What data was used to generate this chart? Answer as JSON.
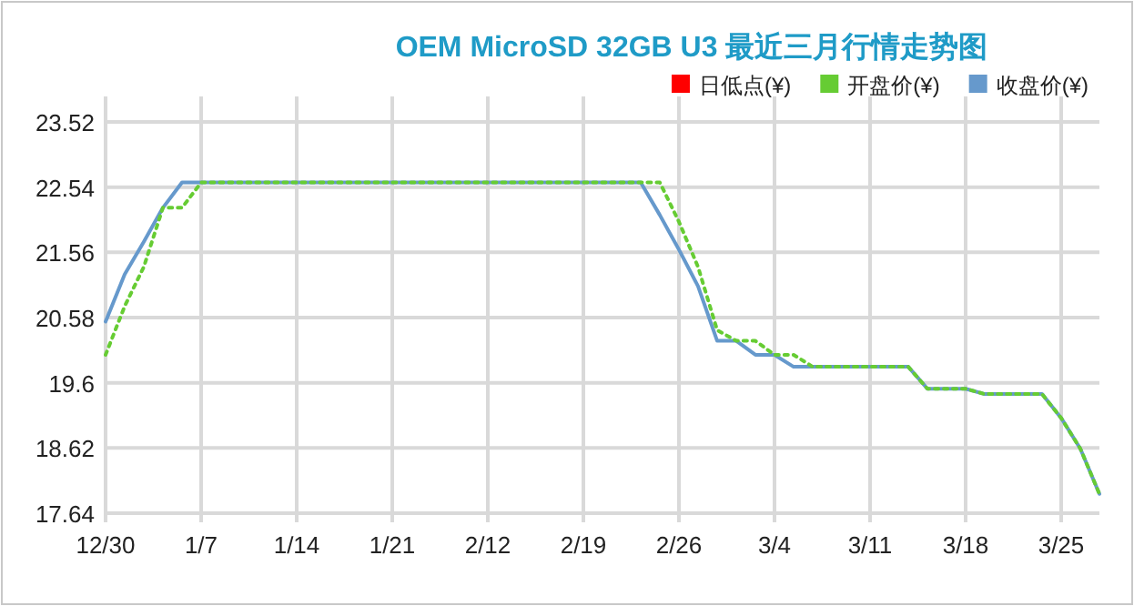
{
  "chart_data": {
    "type": "line",
    "title": "OEM MicroSD 32GB U3 最近三月行情走势图",
    "categories": [
      "12/30",
      null,
      null,
      null,
      null,
      "1/7",
      null,
      null,
      null,
      null,
      "1/14",
      null,
      null,
      null,
      null,
      "1/21",
      null,
      null,
      null,
      null,
      "2/12",
      null,
      null,
      null,
      null,
      "2/19",
      null,
      null,
      null,
      null,
      "2/26",
      null,
      null,
      null,
      null,
      "3/4",
      null,
      null,
      null,
      null,
      "3/11",
      null,
      null,
      null,
      null,
      "3/18",
      null,
      null,
      null,
      null,
      "3/25",
      null,
      null
    ],
    "series": [
      {
        "name": "日低点(¥)",
        "color": "#ff0000",
        "values": [
          null,
          null,
          null,
          null,
          null,
          null,
          null,
          null,
          null,
          null,
          null,
          null,
          null,
          null,
          null,
          null,
          null,
          null,
          null,
          null,
          null,
          null,
          null,
          null,
          null,
          null,
          null,
          null,
          null,
          null,
          null,
          null,
          null,
          null,
          null,
          null,
          null,
          null,
          null,
          null,
          null,
          null,
          null,
          null,
          null,
          null,
          null,
          null,
          null,
          null,
          null,
          null,
          null
        ]
      },
      {
        "name": "开盘价(¥)",
        "color": "#66cc33",
        "line_style": "dotted",
        "values": [
          20.02,
          20.75,
          21.34,
          22.23,
          22.23,
          22.61,
          22.61,
          22.61,
          22.61,
          22.61,
          22.61,
          22.61,
          22.61,
          22.61,
          22.61,
          22.61,
          22.61,
          22.61,
          22.61,
          22.61,
          22.61,
          22.61,
          22.61,
          22.61,
          22.61,
          22.61,
          22.61,
          22.61,
          22.61,
          22.61,
          22.02,
          21.34,
          20.39,
          20.23,
          20.23,
          20.02,
          20.02,
          19.84,
          19.84,
          19.84,
          19.84,
          19.84,
          19.84,
          19.51,
          19.51,
          19.51,
          19.43,
          19.43,
          19.43,
          19.43,
          19.07,
          18.61,
          17.93
        ]
      },
      {
        "name": "收盘价(¥)",
        "color": "#6699cc",
        "line_style": "solid",
        "values": [
          20.52,
          21.23,
          21.72,
          22.23,
          22.61,
          22.61,
          22.61,
          22.61,
          22.61,
          22.61,
          22.61,
          22.61,
          22.61,
          22.61,
          22.61,
          22.61,
          22.61,
          22.61,
          22.61,
          22.61,
          22.61,
          22.61,
          22.61,
          22.61,
          22.61,
          22.61,
          22.61,
          22.61,
          22.61,
          22.12,
          21.6,
          21.05,
          20.23,
          20.23,
          20.02,
          20.02,
          19.84,
          19.84,
          19.84,
          19.84,
          19.84,
          19.84,
          19.84,
          19.51,
          19.51,
          19.51,
          19.43,
          19.43,
          19.43,
          19.43,
          19.07,
          18.61,
          17.93
        ]
      }
    ],
    "ylim": [
      17.64,
      23.52
    ],
    "yticks": [
      17.64,
      18.62,
      19.6,
      20.58,
      21.56,
      22.54,
      23.52
    ],
    "grid": true,
    "legend": "top right"
  }
}
